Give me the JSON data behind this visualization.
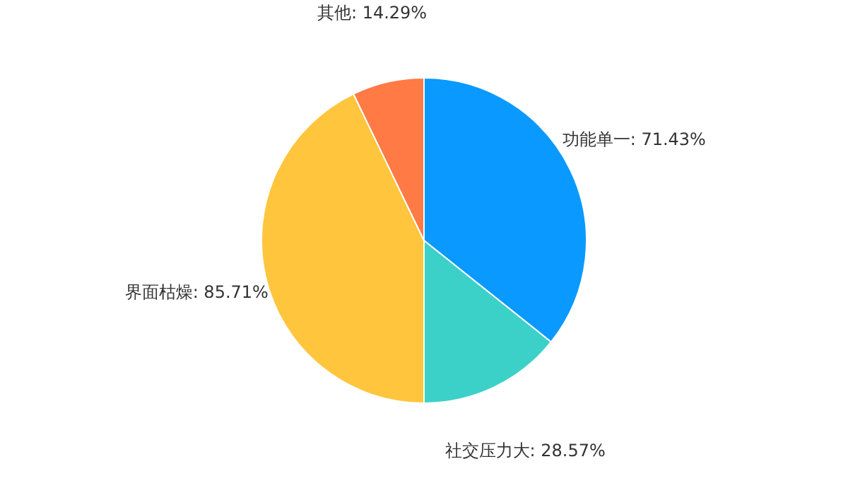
{
  "chart_data": {
    "type": "pie",
    "categories": [
      "功能单一",
      "社交压力大",
      "界面枯燥",
      "其他"
    ],
    "values": [
      71.43,
      28.57,
      85.71,
      14.29
    ],
    "value_labels": [
      "71.43%",
      "28.57%",
      "85.71%",
      "14.29%"
    ],
    "colors": [
      "#0a99ff",
      "#3bd1c9",
      "#ffc53d",
      "#ff7a45"
    ],
    "legend": false
  }
}
